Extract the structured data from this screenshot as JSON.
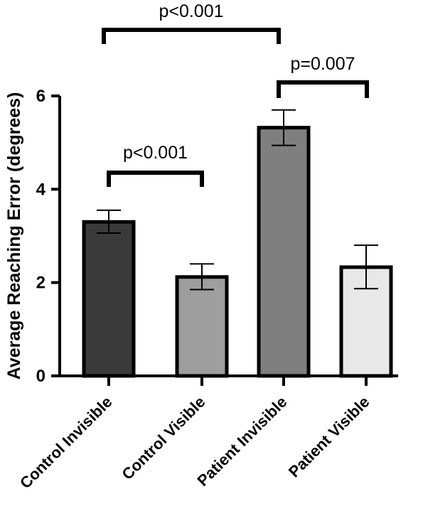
{
  "chart_data": {
    "type": "bar",
    "title": "",
    "xlabel": "",
    "ylabel": "Average Reaching Error (degrees)",
    "ylim": [
      0,
      6
    ],
    "yticks": [
      0,
      2,
      4,
      6
    ],
    "grid": false,
    "categories": [
      "Control Invisible",
      "Control Visible",
      "Patient Invisible",
      "Patient Visible"
    ],
    "values": [
      3.3,
      2.12,
      5.32,
      2.33
    ],
    "error_low": [
      3.06,
      1.85,
      4.94,
      1.87
    ],
    "error_high": [
      3.55,
      2.4,
      5.7,
      2.8
    ],
    "bar_colors": [
      "#3a3a3a",
      "#9e9e9e",
      "#7f7f7f",
      "#e8e8e8"
    ],
    "annotations": [
      {
        "label": "p<0.001",
        "from": "Control Invisible",
        "to": "Patient Invisible"
      },
      {
        "label": "p=0.007",
        "from": "Patient Invisible",
        "to": "Patient Visible"
      },
      {
        "label": "p<0.001",
        "from": "Control Invisible",
        "to": "Control Visible"
      }
    ]
  }
}
